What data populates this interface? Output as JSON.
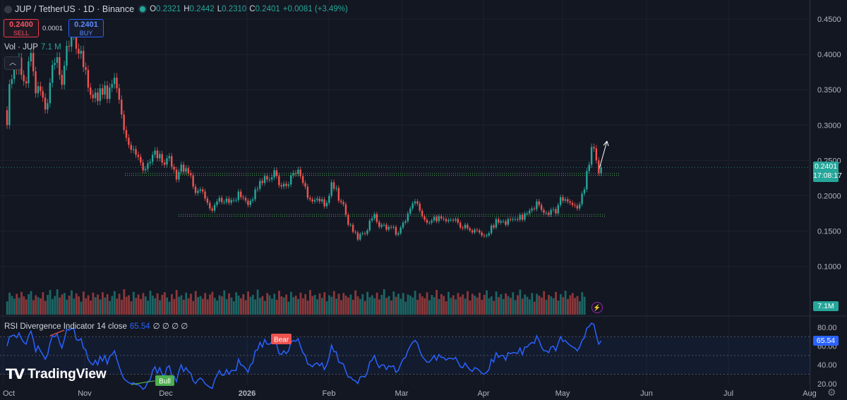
{
  "header": {
    "symbol": "JUP / TetherUS · 1D · Binance",
    "ohlc": [
      {
        "key": "O",
        "value": "0.2321"
      },
      {
        "key": "H",
        "value": "0.2442"
      },
      {
        "key": "L",
        "value": "0.2310"
      },
      {
        "key": "C",
        "value": "0.2401"
      }
    ],
    "change": "+0.0081 (+3.49%)"
  },
  "trade": {
    "sell_price": "0.2400",
    "sell_label": "SELL",
    "buy_price": "0.2401",
    "buy_label": "BUY",
    "spread": "0.0001"
  },
  "volume": {
    "label": "Vol · JUP",
    "value": "7.1 M",
    "badge": "7.1M"
  },
  "rsi": {
    "label": "RSI Divergence Indicator 14 close",
    "value": "65.54",
    "extra": "∅ ∅ ∅ ∅"
  },
  "price_badge": {
    "price": "0.2401",
    "countdown": "17:08:17"
  },
  "brand": "TradingView",
  "colors": {
    "up": "#26a69a",
    "down": "#ef5350",
    "rsi": "#2962ff",
    "support": "#4caf50",
    "background": "#131722"
  },
  "chart_data": [
    {
      "type": "candlestick",
      "title": "JUP / TetherUS · 1D · Binance",
      "x_labels": [
        "Oct",
        "Nov",
        "Dec",
        "2026",
        "Feb",
        "Mar",
        "Apr",
        "May",
        "Jun",
        "Jul",
        "Aug"
      ],
      "y_ticks": [
        "0.4500",
        "0.4000",
        "0.3500",
        "0.3000",
        "0.2500",
        "0.2000",
        "0.1500",
        "0.1000"
      ],
      "ylim": [
        0.05,
        0.46
      ],
      "series": [
        {
          "name": "JUP",
          "start_date": "2025-10-10",
          "close": [
            0.3,
            0.358,
            0.365,
            0.389,
            0.378,
            0.395,
            0.371,
            0.362,
            0.359,
            0.39,
            0.402,
            0.376,
            0.345,
            0.355,
            0.348,
            0.339,
            0.322,
            0.331,
            0.36,
            0.385,
            0.388,
            0.396,
            0.371,
            0.357,
            0.384,
            0.412,
            0.411,
            0.428,
            0.435,
            0.408,
            0.401,
            0.405,
            0.382,
            0.378,
            0.353,
            0.343,
            0.338,
            0.346,
            0.334,
            0.352,
            0.343,
            0.356,
            0.337,
            0.353,
            0.358,
            0.367,
            0.352,
            0.336,
            0.315,
            0.293,
            0.282,
            0.272,
            0.265,
            0.266,
            0.258,
            0.255,
            0.247,
            0.236,
            0.238,
            0.246,
            0.248,
            0.258,
            0.264,
            0.253,
            0.259,
            0.247,
            0.244,
            0.253,
            0.256,
            0.241,
            0.237,
            0.223,
            0.234,
            0.244,
            0.234,
            0.239,
            0.232,
            0.229,
            0.213,
            0.204,
            0.207,
            0.209,
            0.206,
            0.196,
            0.19,
            0.182,
            0.179,
            0.187,
            0.192,
            0.197,
            0.191,
            0.191,
            0.196,
            0.19,
            0.194,
            0.194,
            0.194,
            0.206,
            0.198,
            0.197,
            0.193,
            0.187,
            0.193,
            0.195,
            0.209,
            0.21,
            0.221,
            0.218,
            0.228,
            0.223,
            0.223,
            0.226,
            0.236,
            0.228,
            0.215,
            0.213,
            0.217,
            0.214,
            0.216,
            0.229,
            0.232,
            0.231,
            0.237,
            0.228,
            0.218,
            0.213,
            0.197,
            0.195,
            0.192,
            0.194,
            0.196,
            0.192,
            0.195,
            0.185,
            0.19,
            0.2,
            0.219,
            0.21,
            0.211,
            0.193,
            0.191,
            0.188,
            0.173,
            0.159,
            0.159,
            0.149,
            0.148,
            0.138,
            0.146,
            0.147,
            0.146,
            0.151,
            0.165,
            0.168,
            0.174,
            0.163,
            0.156,
            0.159,
            0.159,
            0.152,
            0.156,
            0.155,
            0.156,
            0.145,
            0.147,
            0.155,
            0.162,
            0.164,
            0.175,
            0.182,
            0.189,
            0.192,
            0.189,
            0.179,
            0.171,
            0.166,
            0.162,
            0.162,
            0.165,
            0.17,
            0.164,
            0.171,
            0.168,
            0.167,
            0.164,
            0.166,
            0.166,
            0.165,
            0.167,
            0.162,
            0.155,
            0.154,
            0.159,
            0.154,
            0.151,
            0.148,
            0.152,
            0.151,
            0.148,
            0.144,
            0.143,
            0.144,
            0.147,
            0.158,
            0.155,
            0.167,
            0.162,
            0.164,
            0.164,
            0.159,
            0.167,
            0.166,
            0.167,
            0.167,
            0.166,
            0.173,
            0.166,
            0.175,
            0.175,
            0.179,
            0.182,
            0.181,
            0.192,
            0.187,
            0.18,
            0.176,
            0.176,
            0.173,
            0.18,
            0.181,
            0.175,
            0.187,
            0.198,
            0.193,
            0.195,
            0.192,
            0.19,
            0.187,
            0.186,
            0.182,
            0.188,
            0.203,
            0.209,
            0.235,
            0.244,
            0.269,
            0.267,
            0.25,
            0.232,
            0.24
          ]
        }
      ]
    },
    {
      "type": "bar",
      "title": "Vol · JUP",
      "series": [
        {
          "name": "Vol · JUP",
          "values": [
            0.28,
            0.51,
            0.42,
            0.35,
            0.48,
            0.37,
            0.53,
            0.41,
            0.33,
            0.47,
            0.55,
            0.31,
            0.44,
            0.39,
            0.36,
            0.52,
            0.29,
            0.45,
            0.58,
            0.34,
            0.42,
            0.6,
            0.38,
            0.46,
            0.5,
            0.32,
            0.43,
            0.57,
            0.35,
            0.49,
            0.41,
            0.27,
            0.54,
            0.36,
            0.44,
            0.3,
            0.51,
            0.39,
            0.46,
            0.33,
            0.52,
            0.38,
            0.47,
            0.29,
            0.42,
            0.55,
            0.35,
            0.48,
            0.32,
            0.6,
            0.4,
            0.44,
            0.28,
            0.53,
            0.37,
            0.46,
            0.34,
            0.5,
            0.41,
            0.3,
            0.56,
            0.43,
            0.36,
            0.49,
            0.31,
            0.45,
            0.52,
            0.38,
            0.27,
            0.47,
            0.34,
            0.58,
            0.4,
            0.44,
            0.32,
            0.51,
            0.36,
            0.48,
            0.29,
            0.55,
            0.39,
            0.42,
            0.35,
            0.5,
            0.33,
            0.46,
            0.53,
            0.37,
            0.3,
            0.44,
            0.41,
            0.57,
            0.34,
            0.49,
            0.38,
            0.28,
            0.52,
            0.43,
            0.36,
            0.47,
            0.31,
            0.54,
            0.4,
            0.45,
            0.33,
            0.59,
            0.37,
            0.42,
            0.29,
            0.5,
            0.44,
            0.35,
            0.48,
            0.32,
            0.56,
            0.41,
            0.38,
            0.46,
            0.27,
            0.53,
            0.39,
            0.43,
            0.34,
            0.51,
            0.36,
            0.47,
            0.3,
            0.58,
            0.42,
            0.45,
            0.33,
            0.49,
            0.37,
            0.52,
            0.28,
            0.44,
            0.4,
            0.55,
            0.35,
            0.48,
            0.31,
            0.5,
            0.43,
            0.38,
            0.46,
            0.32,
            0.57,
            0.41,
            0.34,
            0.47,
            0.29,
            0.53,
            0.39,
            0.44,
            0.36,
            0.51,
            0.33,
            0.45,
            0.6,
            0.37,
            0.42,
            0.3,
            0.54,
            0.4,
            0.48,
            0.35,
            0.5,
            0.27,
            0.46,
            0.43,
            0.38,
            0.56,
            0.32,
            0.49,
            0.41,
            0.36,
            0.52,
            0.31,
            0.45,
            0.39,
            0.58,
            0.34,
            0.47,
            0.42,
            0.28,
            0.53,
            0.37,
            0.44,
            0.33,
            0.5,
            0.4,
            0.46,
            0.35,
            0.55,
            0.3,
            0.48,
            0.43,
            0.38,
            0.51,
            0.32,
            0.45,
            0.57,
            0.36,
            0.41,
            0.29,
            0.54,
            0.39,
            0.47,
            0.34,
            0.49,
            0.42,
            0.37,
            0.52,
            0.31,
            0.44,
            0.59,
            0.35,
            0.46,
            0.4,
            0.33,
            0.5,
            0.27,
            0.48,
            0.43,
            0.38,
            0.55,
            0.32,
            0.45,
            0.41,
            0.36,
            0.53,
            0.3,
            0.47,
            0.39,
            0.56,
            0.34,
            0.44,
            0.5,
            0.37,
            0.42,
            0.28,
            0.52,
            0.4
          ]
        }
      ]
    },
    {
      "type": "line",
      "title": "RSI Divergence Indicator 14 close",
      "y_ticks": [
        "80.00",
        "60.00",
        "40.00",
        "20.00"
      ],
      "ylim": [
        20,
        85
      ],
      "annotations": [
        {
          "label": "Bear",
          "type": "divergence"
        },
        {
          "label": "Bull",
          "type": "divergence"
        }
      ],
      "series": [
        {
          "name": "RSI",
          "values": [
            60.0,
            70.0,
            71.0,
            71.8,
            69.0,
            74.0,
            68.0,
            64.0,
            62.0,
            71.0,
            76.0,
            67.0,
            54.0,
            60.0,
            55.0,
            51.0,
            46.0,
            51.0,
            63.0,
            71.0,
            70.0,
            73.0,
            64.0,
            58.0,
            67.0,
            78.0,
            77.0,
            78.5,
            79.0,
            67.0,
            66.0,
            68.0,
            58.0,
            56.0,
            46.0,
            42.0,
            40.0,
            45.0,
            40.0,
            49.0,
            44.0,
            50.0,
            41.0,
            49.0,
            51.0,
            55.0,
            46.0,
            38.0,
            31.0,
            25.0,
            23.0,
            21.0,
            20.0,
            21.0,
            19.0,
            19.0,
            17.0,
            14.0,
            16.0,
            22.0,
            24.0,
            34.0,
            38.0,
            31.0,
            37.0,
            30.0,
            28.0,
            37.0,
            39.0,
            29.0,
            28.0,
            22.0,
            33.0,
            40.0,
            33.0,
            37.0,
            33.0,
            31.0,
            23.0,
            20.0,
            24.0,
            26.0,
            24.0,
            20.0,
            18.0,
            16.0,
            15.0,
            24.0,
            29.0,
            34.0,
            29.0,
            29.0,
            35.0,
            30.0,
            34.0,
            34.0,
            34.0,
            46.0,
            40.0,
            39.0,
            36.0,
            32.0,
            40.0,
            42.0,
            55.0,
            56.0,
            64.0,
            59.0,
            67.0,
            62.0,
            62.0,
            64.0,
            70.0,
            62.0,
            52.0,
            51.0,
            55.0,
            52.0,
            55.0,
            64.0,
            66.0,
            65.0,
            68.0,
            60.0,
            53.0,
            50.0,
            41.0,
            40.0,
            38.0,
            41.0,
            42.0,
            39.0,
            42.0,
            35.0,
            40.0,
            48.0,
            61.0,
            54.0,
            54.0,
            43.0,
            42.0,
            41.0,
            33.0,
            27.0,
            27.0,
            24.0,
            23.0,
            20.0,
            27.0,
            28.0,
            27.0,
            32.0,
            43.0,
            45.0,
            50.0,
            42.0,
            37.0,
            40.0,
            40.0,
            35.0,
            39.0,
            38.0,
            39.0,
            32.0,
            34.0,
            41.0,
            46.0,
            48.0,
            55.0,
            60.0,
            64.0,
            66.0,
            63.0,
            55.0,
            49.0,
            46.0,
            43.0,
            43.0,
            46.0,
            50.0,
            45.0,
            51.0,
            48.0,
            48.0,
            45.0,
            47.0,
            47.0,
            46.0,
            48.0,
            43.0,
            38.0,
            37.0,
            42.0,
            38.0,
            35.0,
            33.0,
            37.0,
            36.0,
            34.0,
            31.0,
            30.0,
            32.0,
            35.0,
            46.0,
            43.0,
            53.0,
            48.0,
            50.0,
            50.0,
            45.0,
            53.0,
            52.0,
            53.0,
            53.0,
            52.0,
            58.0,
            51.0,
            59.0,
            59.0,
            62.0,
            64.0,
            63.0,
            71.0,
            66.0,
            59.0,
            55.0,
            55.0,
            53.0,
            59.0,
            60.0,
            55.0,
            63.0,
            70.0,
            65.0,
            66.0,
            63.0,
            61.0,
            59.0,
            58.0,
            55.0,
            59.0,
            66.0,
            69.0,
            79.0,
            81.0,
            84.5,
            83.0,
            71.0,
            62.0,
            65.54
          ]
        }
      ]
    }
  ]
}
